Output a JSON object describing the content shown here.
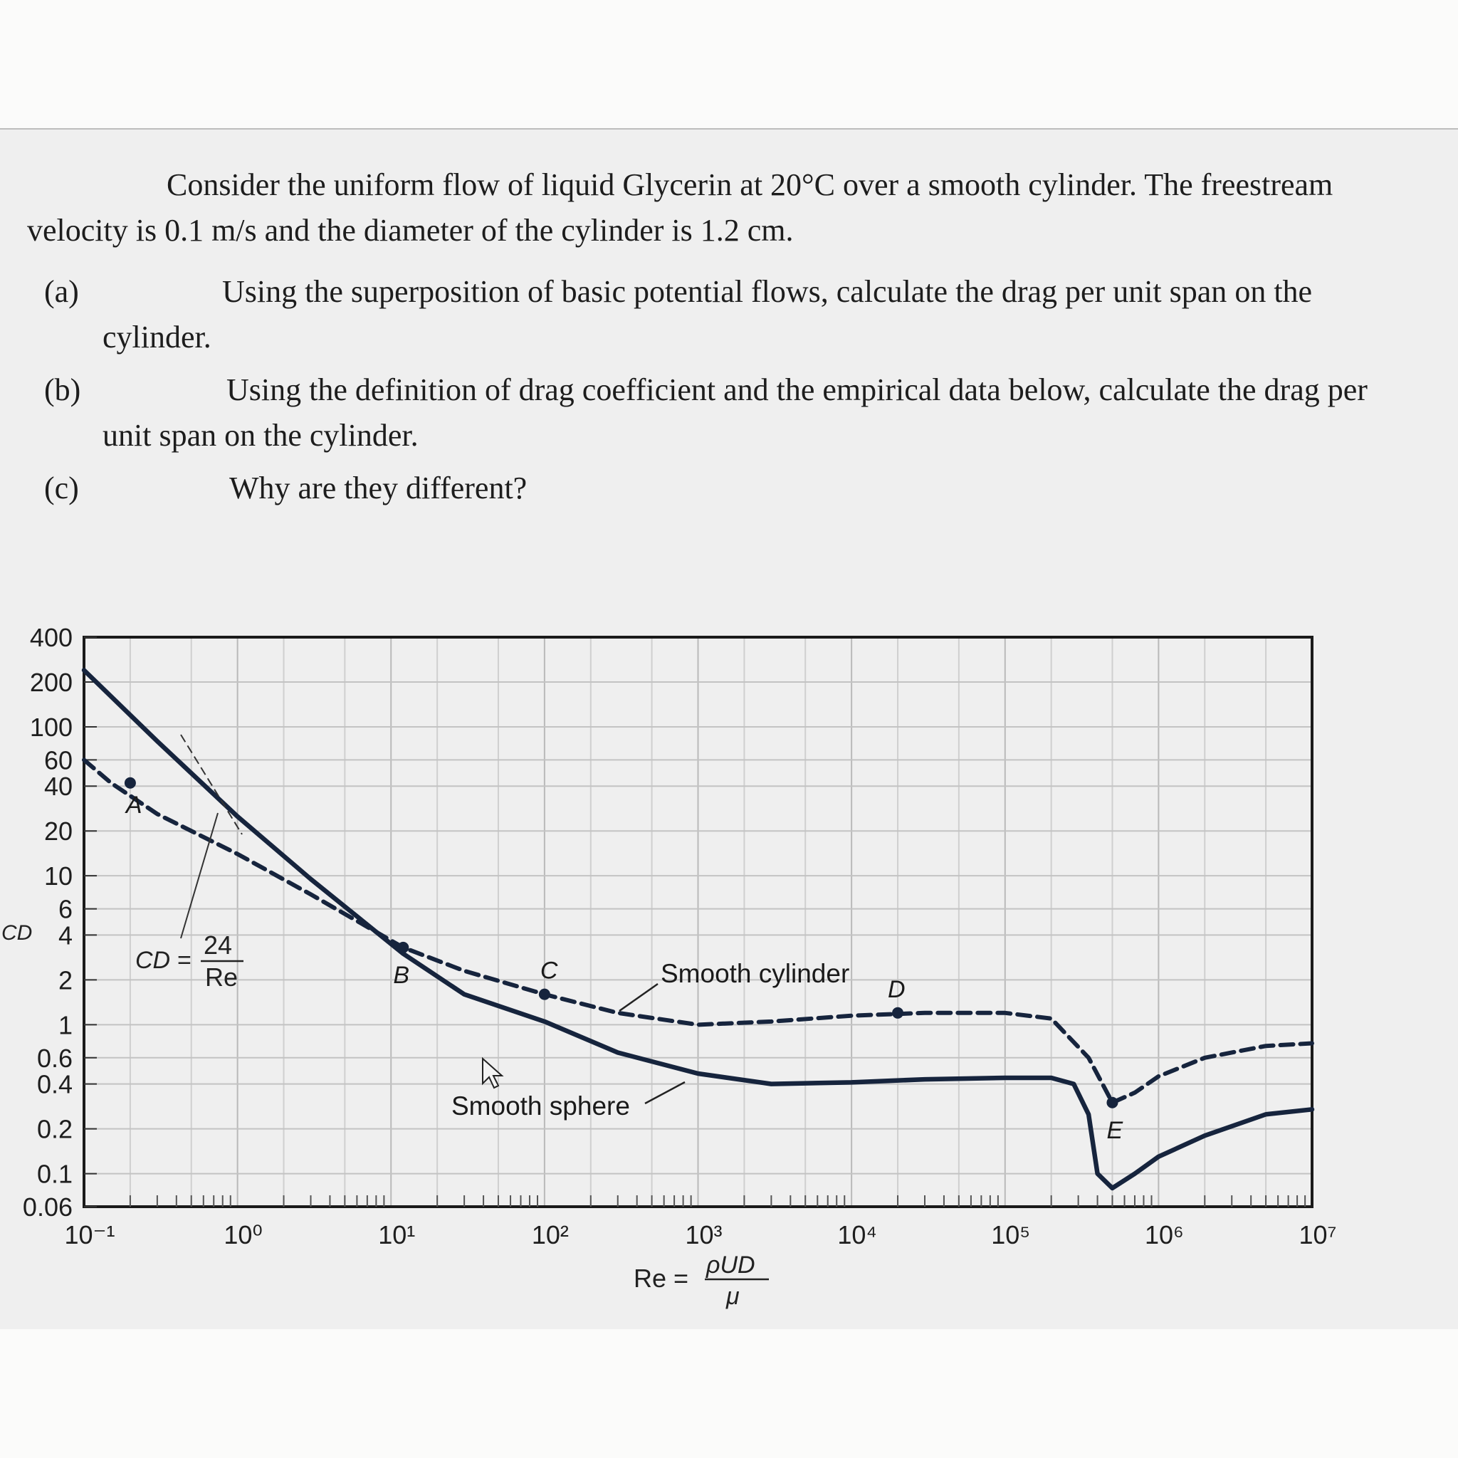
{
  "problem": {
    "intro": "Consider the uniform flow of liquid Glycerin at 20°C over a smooth cylinder. The freestream velocity is 0.1 m/s and the diameter of the cylinder is 1.2 cm.",
    "parts": [
      {
        "label": "(a)",
        "first": "Using the superposition of basic potential flows, calculate the drag per unit span",
        "rest": "on the cylinder."
      },
      {
        "label": "(b)",
        "first": "Using the definition of drag coefficient and the empirical data below, calculate",
        "rest": "the drag per unit span on the cylinder."
      },
      {
        "label": "(c)",
        "first": "Why are they different?",
        "rest": ""
      }
    ]
  },
  "chart_data": {
    "type": "line",
    "xscale": "log",
    "yscale": "log",
    "xlim": [
      0.1,
      10000000
    ],
    "ylim": [
      0.06,
      400
    ],
    "ylabel": "CD",
    "xlabel": "Re = ρUD/μ",
    "x_ticks": [
      "10⁻¹",
      "10⁰",
      "10¹",
      "10²",
      "10³",
      "10⁴",
      "10⁵",
      "10⁶",
      "10⁷"
    ],
    "y_ticks": [
      400,
      200,
      100,
      60,
      40,
      20,
      10,
      6,
      4,
      2,
      1,
      0.6,
      0.4,
      0.2,
      0.1,
      0.06
    ],
    "grid": true,
    "series": [
      {
        "name": "Smooth cylinder",
        "style": "dashed",
        "x": [
          0.1,
          0.15,
          0.3,
          1,
          3,
          12,
          30,
          100,
          300,
          1000,
          3000,
          10000,
          30000,
          100000,
          200000,
          350000,
          500000,
          700000,
          1000000,
          2000000,
          5000000,
          10000000
        ],
        "y": [
          60,
          42,
          26,
          14,
          7.5,
          3.3,
          2.3,
          1.6,
          1.2,
          1.0,
          1.05,
          1.15,
          1.2,
          1.2,
          1.1,
          0.6,
          0.3,
          0.35,
          0.45,
          0.6,
          0.72,
          0.75
        ]
      },
      {
        "name": "Smooth sphere",
        "style": "solid",
        "x": [
          0.1,
          0.3,
          1,
          3,
          12,
          30,
          100,
          300,
          1000,
          3000,
          10000,
          30000,
          100000,
          200000,
          280000,
          350000,
          400000,
          500000,
          700000,
          1000000,
          2000000,
          5000000,
          10000000
        ],
        "y": [
          240,
          80,
          25,
          9.5,
          3.0,
          1.6,
          1.05,
          0.65,
          0.47,
          0.4,
          0.41,
          0.43,
          0.44,
          0.44,
          0.4,
          0.25,
          0.1,
          0.08,
          0.1,
          0.13,
          0.18,
          0.25,
          0.27
        ]
      }
    ],
    "points": [
      {
        "label": "A",
        "x": 0.2,
        "y": 42
      },
      {
        "label": "B",
        "x": 12,
        "y": 3.3
      },
      {
        "label": "C",
        "x": 100,
        "y": 1.6
      },
      {
        "label": "D",
        "x": 20000,
        "y": 1.2
      },
      {
        "label": "E",
        "x": 500000,
        "y": 0.3
      }
    ],
    "annotations": {
      "stokes_law": {
        "lhs": "CD =",
        "num": "24",
        "den": "Re"
      },
      "cylinder_label": "Smooth cylinder",
      "sphere_label": "Smooth sphere"
    }
  },
  "xlabel_parts": {
    "lhs": "Re =",
    "num": "ρUD",
    "den": "μ"
  }
}
